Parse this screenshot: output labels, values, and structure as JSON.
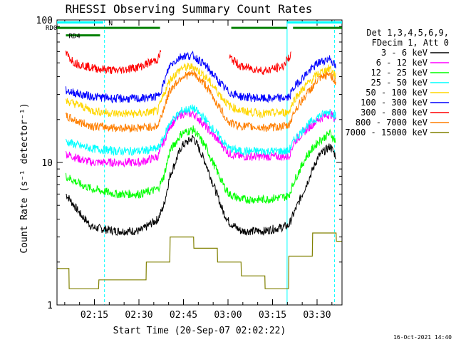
{
  "chart_data": {
    "type": "line",
    "title": "RHESSI Observing Summary Count Rates",
    "xlabel": "Start Time (20-Sep-07 02:02:22)",
    "ylabel": "Count Rate (s⁻¹ detector⁻¹)",
    "y_scale": "log",
    "ylim": [
      1,
      100
    ],
    "xlim_minutes": [
      0,
      96
    ],
    "y_ticks": [
      {
        "value": 1,
        "label": "1"
      },
      {
        "value": 10,
        "label": "10"
      },
      {
        "value": 100,
        "label": "100"
      }
    ],
    "x_ticks": [
      {
        "label": "02:15",
        "value": 12.6
      },
      {
        "label": "02:30",
        "value": 27.6
      },
      {
        "label": "02:45",
        "value": 42.6
      },
      {
        "label": "03:00",
        "value": 57.6
      },
      {
        "label": "03:15",
        "value": 72.6
      },
      {
        "label": "03:30",
        "value": 87.6
      }
    ],
    "legend_header": [
      "Det 1,3,4,5,6,9,",
      "FDecim 1, Att 0"
    ],
    "legend_position": "right",
    "series": [
      {
        "name": "3 - 6 keV",
        "color": "#000000",
        "x": [
          3,
          8,
          12,
          20,
          28,
          34,
          36,
          38,
          42,
          46,
          50,
          56,
          58,
          62,
          70,
          78,
          80,
          84,
          88,
          92,
          94
        ],
        "y": [
          6.0,
          4.3,
          3.5,
          3.3,
          3.3,
          4.0,
          5.0,
          8.0,
          13.0,
          15.0,
          10.0,
          4.5,
          3.8,
          3.3,
          3.3,
          3.6,
          4.5,
          7.0,
          11.0,
          13.0,
          11.0
        ]
      },
      {
        "name": "6 - 12 keV",
        "color": "#ff00ff",
        "x": [
          3,
          8,
          12,
          20,
          28,
          34,
          36,
          38,
          42,
          46,
          50,
          56,
          58,
          62,
          70,
          78,
          80,
          84,
          88,
          92,
          94
        ],
        "y": [
          11.5,
          10.5,
          10.0,
          10.0,
          10.0,
          11.0,
          14.0,
          18.0,
          22.0,
          22.0,
          18.0,
          13.0,
          11.5,
          11.0,
          11.0,
          11.0,
          14.0,
          17.0,
          20.0,
          22.0,
          20.0
        ]
      },
      {
        "name": "12 - 25 keV",
        "color": "#00ff00",
        "x": [
          3,
          8,
          12,
          20,
          28,
          34,
          36,
          38,
          42,
          46,
          50,
          56,
          58,
          62,
          70,
          78,
          80,
          84,
          88,
          92,
          94
        ],
        "y": [
          8.0,
          7.0,
          6.5,
          6.0,
          6.0,
          6.5,
          8.0,
          12.0,
          16.0,
          17.0,
          13.0,
          7.0,
          6.0,
          5.5,
          5.5,
          5.8,
          7.5,
          11.0,
          14.0,
          16.0,
          14.0
        ]
      },
      {
        "name": "25 - 50 keV",
        "color": "#00ffff",
        "x": [
          3,
          8,
          12,
          20,
          28,
          34,
          36,
          38,
          42,
          46,
          50,
          56,
          58,
          62,
          70,
          78,
          80,
          84,
          88,
          92,
          94
        ],
        "y": [
          14.0,
          13.0,
          12.5,
          12.0,
          12.0,
          12.5,
          15.0,
          19.0,
          23.0,
          24.0,
          20.0,
          14.0,
          12.5,
          12.0,
          12.0,
          12.0,
          14.5,
          18.0,
          21.0,
          23.0,
          21.0
        ]
      },
      {
        "name": "50 - 100 keV",
        "color": "#ffd700",
        "x": [
          3,
          8,
          12,
          20,
          28,
          34,
          36,
          38,
          42,
          46,
          50,
          56,
          58,
          62,
          70,
          78,
          80,
          84,
          88,
          92,
          94
        ],
        "y": [
          27.0,
          25.0,
          23.0,
          22.0,
          22.0,
          23.0,
          30.0,
          38.0,
          46.0,
          47.0,
          40.0,
          28.0,
          25.0,
          23.0,
          22.0,
          22.5,
          28.0,
          35.0,
          42.0,
          46.0,
          40.0
        ]
      },
      {
        "name": "100 - 300 keV",
        "color": "#0000ff",
        "x": [
          3,
          8,
          12,
          20,
          28,
          34,
          36,
          38,
          42,
          46,
          50,
          56,
          58,
          62,
          70,
          78,
          80,
          84,
          88,
          92,
          94
        ],
        "y": [
          32.0,
          30.0,
          29.0,
          28.0,
          28.0,
          29.0,
          36.0,
          48.0,
          56.0,
          56.0,
          48.0,
          34.0,
          31.0,
          29.0,
          28.0,
          28.5,
          34.0,
          42.0,
          50.0,
          54.0,
          46.0
        ]
      },
      {
        "name": "300 - 800 keV",
        "color": "#ff0000",
        "x": [
          3,
          6,
          12,
          20,
          28,
          34,
          35
        ],
        "y": [
          58.0,
          50.0,
          46.0,
          44.0,
          47.0,
          53.0,
          60.0
        ]
      },
      {
        "name": "300 - 800 keV (2)",
        "color": "#ff0000",
        "x": [
          58,
          62,
          70,
          76,
          79
        ],
        "y": [
          55.0,
          47.0,
          44.0,
          47.0,
          58.0
        ]
      },
      {
        "name": "800 - 7000 keV",
        "color": "#ff7f00",
        "x": [
          3,
          8,
          12,
          20,
          28,
          34,
          36,
          38,
          42,
          46,
          50,
          56,
          58,
          62,
          70,
          78,
          80,
          84,
          88,
          92,
          94
        ],
        "y": [
          21.0,
          19.0,
          18.0,
          17.5,
          17.5,
          18.0,
          24.0,
          32.0,
          40.0,
          42.0,
          35.0,
          22.0,
          19.0,
          18.0,
          17.5,
          18.0,
          23.0,
          30.0,
          38.0,
          42.0,
          36.0
        ]
      },
      {
        "name": "7000 - 15000 keV",
        "color": "#808000",
        "x": [
          0,
          4,
          4.1,
          14,
          14.1,
          30,
          30.1,
          38,
          38.1,
          46,
          46.1,
          54,
          54.1,
          62,
          62.1,
          70,
          70.1,
          78,
          78.1,
          86,
          86.1,
          94,
          94.1,
          96
        ],
        "y": [
          1.8,
          1.8,
          1.3,
          1.3,
          1.5,
          1.5,
          2.0,
          2.0,
          3.0,
          3.0,
          2.5,
          2.5,
          2.0,
          2.0,
          1.6,
          1.6,
          1.3,
          1.3,
          2.2,
          2.2,
          3.2,
          3.2,
          2.8,
          2.8
        ]
      }
    ],
    "state_bars": [
      {
        "label": "N",
        "color": "#00ffff",
        "segments": [
          [
            0,
            15.6
          ],
          [
            77.5,
            96
          ]
        ],
        "level": 96
      },
      {
        "label": "RD0",
        "color": "#008000",
        "segments": [
          [
            0,
            34.7
          ],
          [
            58.7,
            77.5
          ],
          [
            79.5,
            96
          ]
        ],
        "level": 88
      },
      {
        "label": "RD4",
        "color": "#008000",
        "segments": [
          [
            3,
            14.5
          ]
        ],
        "level": 78
      }
    ],
    "vertical_markers": [
      {
        "x": 0,
        "color": "#00ffff",
        "style": "solid"
      },
      {
        "x": 16,
        "color": "#00ffff",
        "style": "dashed"
      },
      {
        "x": 77.5,
        "color": "#00ffff",
        "style": "solid"
      },
      {
        "x": 93.5,
        "color": "#00ffff",
        "style": "dashed"
      }
    ],
    "grid": false
  },
  "footer_timestamp": "16-Oct-2021 14:40",
  "colors": {
    "background": "#ffffff",
    "axes": "#000000"
  }
}
